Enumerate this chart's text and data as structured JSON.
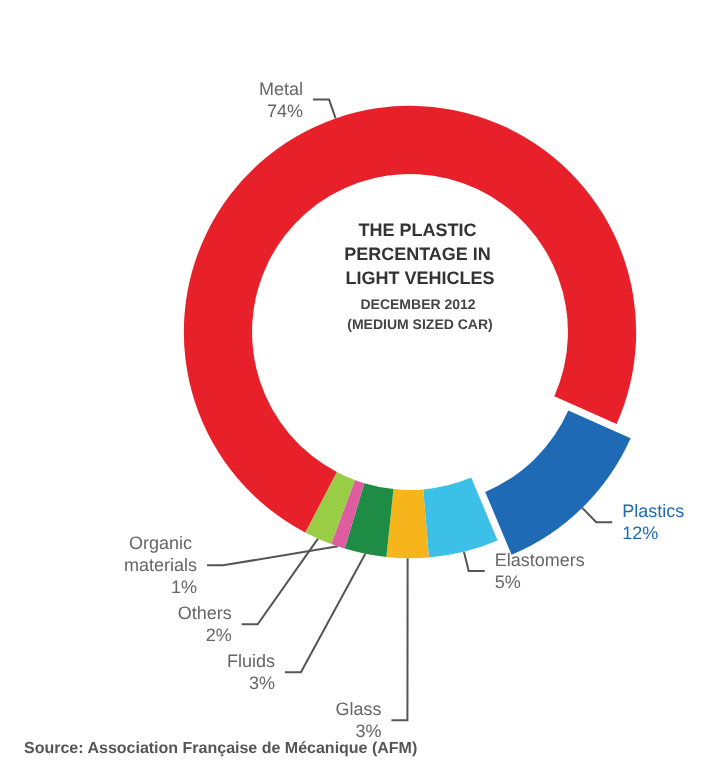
{
  "chart_data": {
    "type": "donut",
    "title": "THE PLASTIC PERCENTAGE IN LIGHT VEHICLES",
    "subtitle": "DECEMBER 2012 (MEDIUM SIZED CAR)",
    "categories": [
      "Plastics",
      "Elastomers",
      "Glass",
      "Fluids",
      "Organic materials",
      "Others",
      "Metal"
    ],
    "values": [
      12,
      5,
      3,
      3,
      1,
      2,
      74
    ],
    "colors": [
      "#1f6ab5",
      "#3cc0e8",
      "#f5b51b",
      "#1e8c45",
      "#e05ca0",
      "#9acd46",
      "#e8202a"
    ],
    "value_labels": [
      "12%",
      "5%",
      "3%",
      "3%",
      "1%",
      "2%",
      "74%"
    ],
    "legend": false,
    "annotations": [
      "Source: Association Française de Mécanique (AFM)"
    ]
  }
}
